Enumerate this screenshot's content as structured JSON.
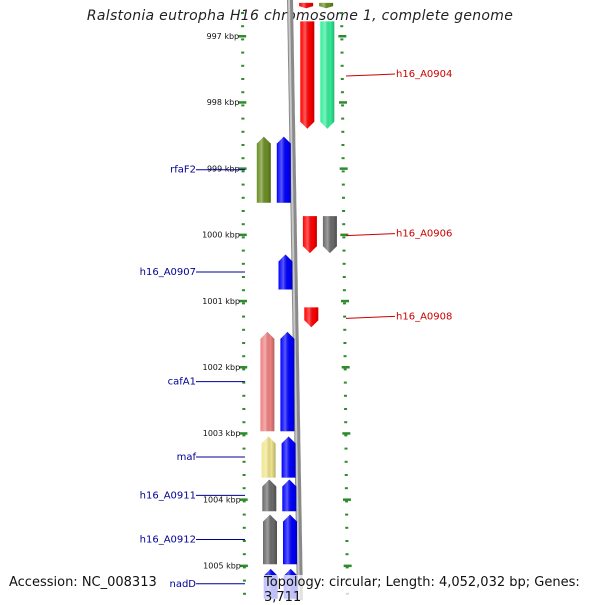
{
  "title": "Ralstonia eutropha H16 chromosome 1, complete genome",
  "footer": {
    "accession": "Accession: NC_008313",
    "topology": "Topology: circular; Length: 4,052,032 bp; Genes: 3,711"
  },
  "axis": {
    "unit": "kbp",
    "ticks": [
      {
        "kbp": 997,
        "label": "997 kbp"
      },
      {
        "kbp": 998,
        "label": "998 kbp"
      },
      {
        "kbp": 999,
        "label": "999 kbp"
      },
      {
        "kbp": 1000,
        "label": "1000 kbp"
      },
      {
        "kbp": 1001,
        "label": "1001 kbp"
      },
      {
        "kbp": 1002,
        "label": "1002 kbp"
      },
      {
        "kbp": 1003,
        "label": "1003 kbp"
      },
      {
        "kbp": 1004,
        "label": "1004 kbp"
      },
      {
        "kbp": 1005,
        "label": "1005 kbp"
      }
    ]
  },
  "genes": [
    {
      "id": "g1",
      "label": "",
      "strand": "+",
      "start": 996.5,
      "end": 996.58,
      "color": "#ff0000",
      "track": "right-inner"
    },
    {
      "id": "g2",
      "label": "",
      "strand": "+",
      "start": 996.5,
      "end": 996.58,
      "color": "#6b8e23",
      "track": "right-outer"
    },
    {
      "id": "g3",
      "label": "h16_A0904",
      "strand": "+",
      "start": 996.78,
      "end": 998.4,
      "color": "#ff0000",
      "track": "right-inner"
    },
    {
      "id": "g4",
      "label": "",
      "strand": "+",
      "start": 996.78,
      "end": 998.4,
      "color": "#33ee99",
      "track": "right-outer"
    },
    {
      "id": "g5",
      "label": "rfaF2",
      "strand": "-",
      "start": 998.52,
      "end": 999.52,
      "color": "#6b8e23",
      "track": "left-outer"
    },
    {
      "id": "g6",
      "label": "",
      "strand": "-",
      "start": 998.52,
      "end": 999.52,
      "color": "#0000ff",
      "track": "left-inner"
    },
    {
      "id": "g7",
      "label": "h16_A0906",
      "strand": "+",
      "start": 999.72,
      "end": 1000.28,
      "color": "#ff0000",
      "track": "right-inner"
    },
    {
      "id": "g8",
      "label": "",
      "strand": "+",
      "start": 999.72,
      "end": 1000.28,
      "color": "#6a6a6a",
      "track": "right-outer"
    },
    {
      "id": "g9",
      "label": "h16_A0907",
      "strand": "-",
      "start": 1000.3,
      "end": 1000.83,
      "color": "#0000ff",
      "track": "left-inner"
    },
    {
      "id": "g10",
      "label": "h16_A0908",
      "strand": "+",
      "start": 1001.1,
      "end": 1001.4,
      "color": "#ff0000",
      "track": "right-inner"
    },
    {
      "id": "g11",
      "label": "cafA1",
      "strand": "-",
      "start": 1001.47,
      "end": 1002.97,
      "color": "#f08080",
      "track": "left-outer"
    },
    {
      "id": "g12",
      "label": "",
      "strand": "-",
      "start": 1001.47,
      "end": 1002.97,
      "color": "#0000ff",
      "track": "left-inner"
    },
    {
      "id": "g13",
      "label": "maf",
      "strand": "-",
      "start": 1003.05,
      "end": 1003.67,
      "color": "#f0e68c",
      "track": "left-outer"
    },
    {
      "id": "g14",
      "label": "",
      "strand": "-",
      "start": 1003.05,
      "end": 1003.67,
      "color": "#0000ff",
      "track": "left-inner"
    },
    {
      "id": "g15",
      "label": "h16_A0911",
      "strand": "-",
      "start": 1003.7,
      "end": 1004.18,
      "color": "#6a6a6a",
      "track": "left-outer"
    },
    {
      "id": "g16",
      "label": "",
      "strand": "-",
      "start": 1003.7,
      "end": 1004.18,
      "color": "#0000ff",
      "track": "left-inner"
    },
    {
      "id": "g17",
      "label": "h16_A0912",
      "strand": "-",
      "start": 1004.23,
      "end": 1004.98,
      "color": "#6a6a6a",
      "track": "left-outer"
    },
    {
      "id": "g18",
      "label": "",
      "strand": "-",
      "start": 1004.23,
      "end": 1004.98,
      "color": "#0000ff",
      "track": "left-inner"
    },
    {
      "id": "g19",
      "label": "nadD",
      "strand": "-",
      "start": 1005.05,
      "end": 1005.5,
      "color": "#0000ff",
      "track": "left-outer"
    },
    {
      "id": "g20",
      "label": "",
      "strand": "-",
      "start": 1005.05,
      "end": 1005.5,
      "color": "#0000ff",
      "track": "left-inner"
    }
  ],
  "colors": {
    "tick": "#2e8b2e",
    "right_label": "#cc0000",
    "left_label": "#000099",
    "backbone": "#8a8a8a"
  }
}
